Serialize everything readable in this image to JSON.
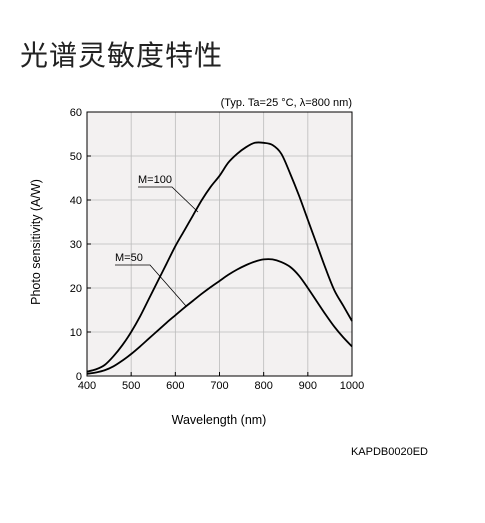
{
  "page": {
    "title": "光谱灵敏度特性",
    "figure_code": "KAPDB0020ED"
  },
  "colors": {
    "curve": "#000000",
    "plot_bg": "#f3f1f1",
    "grid": "#bbbbbb",
    "axis": "#000000",
    "text": "#000000"
  },
  "chart_data": {
    "type": "line",
    "subtitle": "(Typ. Ta=25 °C, λ=800 nm)",
    "xlabel": "Wavelength (nm)",
    "ylabel": "Photo sensitivity (A/W)",
    "xlim": [
      400,
      1000
    ],
    "ylim": [
      0,
      60
    ],
    "xticks": [
      400,
      500,
      600,
      700,
      800,
      900,
      1000
    ],
    "yticks": [
      0,
      10,
      20,
      30,
      40,
      50,
      60
    ],
    "grid": true,
    "series": [
      {
        "name": "M=100",
        "x": [
          400,
          420,
          440,
          460,
          480,
          500,
          520,
          540,
          560,
          580,
          600,
          620,
          640,
          660,
          680,
          700,
          720,
          740,
          760,
          780,
          800,
          820,
          840,
          860,
          880,
          900,
          920,
          940,
          960,
          980,
          1000
        ],
        "y": [
          1,
          1.5,
          2.5,
          4.5,
          7.0,
          10.0,
          13.5,
          17.5,
          21.5,
          25.5,
          29.5,
          33.0,
          36.5,
          40.0,
          43.0,
          45.5,
          48.5,
          50.5,
          52.0,
          53.0,
          53.0,
          52.5,
          50.5,
          46.0,
          41.0,
          35.5,
          30.0,
          24.5,
          19.5,
          16.0,
          12.5
        ]
      },
      {
        "name": "M=50",
        "x": [
          400,
          420,
          440,
          460,
          480,
          500,
          520,
          540,
          560,
          580,
          600,
          620,
          640,
          660,
          680,
          700,
          720,
          740,
          760,
          780,
          800,
          820,
          840,
          860,
          880,
          900,
          920,
          940,
          960,
          980,
          1000
        ],
        "y": [
          0.5,
          0.8,
          1.3,
          2.2,
          3.5,
          5.0,
          6.7,
          8.5,
          10.3,
          12.1,
          13.8,
          15.5,
          17.1,
          18.7,
          20.2,
          21.6,
          23.0,
          24.2,
          25.2,
          26.0,
          26.5,
          26.5,
          25.9,
          24.8,
          22.8,
          20.0,
          17.0,
          14.0,
          11.2,
          8.8,
          6.7
        ]
      }
    ],
    "annotations": [
      {
        "text": "M=100",
        "series": "M=100"
      },
      {
        "text": "M=50",
        "series": "M=50"
      }
    ]
  }
}
